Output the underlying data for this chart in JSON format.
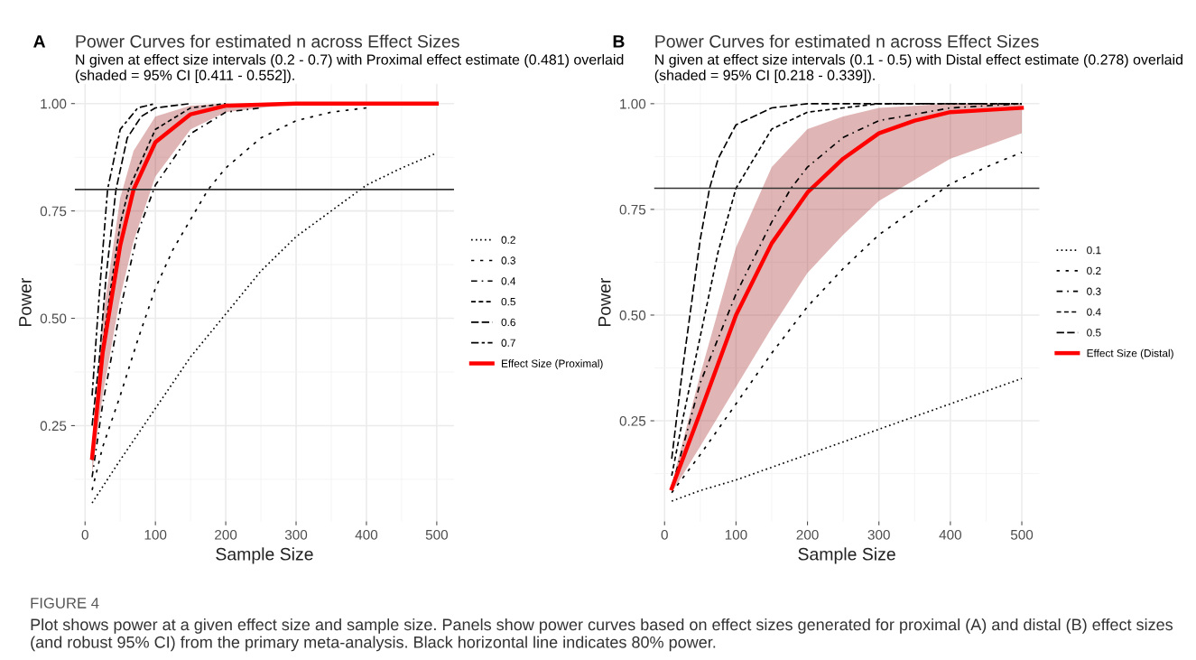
{
  "chart_data": [
    {
      "type": "line",
      "title": "Power Curves for estimated n across Effect Sizes",
      "subtitle": "N given at effect size intervals (0.2 - 0.7) with Proximal effect estimate (0.481) overlaid (shaded = 95% CI [0.411 - 0.552]).",
      "xlabel": "Sample Size",
      "ylabel": "Power",
      "annotations": [
        "A"
      ],
      "xlim": [
        -14.5,
        524.5
      ],
      "ylim": [
        0.027,
        1.046
      ],
      "xticks": [
        0,
        100,
        200,
        300,
        400,
        500
      ],
      "yticks": [
        {
          "value": 0.25,
          "label": "0.25"
        },
        {
          "value": 0.5,
          "label": "0.50"
        },
        {
          "value": 0.75,
          "label": "0.75"
        },
        {
          "value": 1.0,
          "label": "1.00"
        }
      ],
      "grid": true,
      "legend": "right",
      "marker": "none",
      "ref_lines": [
        {
          "axis": "y",
          "value": 0.8,
          "color": "#333333",
          "line_style": "solid"
        }
      ],
      "series": [
        {
          "name": "0.2",
          "color": "#000000",
          "line_style": "dotted",
          "x": [
            10,
            50,
            100,
            150,
            200,
            250,
            300,
            350,
            400,
            450,
            500
          ],
          "values": [
            0.07,
            0.17,
            0.29,
            0.41,
            0.51,
            0.61,
            0.69,
            0.75,
            0.81,
            0.85,
            0.885
          ]
        },
        {
          "name": "0.3",
          "color": "#000000",
          "line_style": "dashed",
          "x": [
            10,
            25,
            50,
            75,
            100,
            125,
            150,
            175,
            200,
            250,
            300,
            350,
            400
          ],
          "values": [
            0.1,
            0.2,
            0.32,
            0.45,
            0.57,
            0.66,
            0.73,
            0.8,
            0.85,
            0.92,
            0.96,
            0.98,
            0.99
          ]
        },
        {
          "name": "0.4",
          "color": "#000000",
          "line_style": "dashed",
          "x": [
            10,
            25,
            50,
            75,
            100,
            150,
            200,
            250
          ],
          "values": [
            0.13,
            0.3,
            0.52,
            0.7,
            0.81,
            0.93,
            0.98,
            0.99
          ]
        },
        {
          "name": "0.5",
          "color": "#000000",
          "line_style": "dashed",
          "x": [
            10,
            25,
            50,
            62,
            100,
            150,
            200
          ],
          "values": [
            0.17,
            0.44,
            0.72,
            0.8,
            0.94,
            0.99,
            1.0
          ]
        },
        {
          "name": "0.6",
          "color": "#000000",
          "line_style": "dashed",
          "x": [
            10,
            20,
            30,
            44,
            60,
            80,
            100,
            150
          ],
          "values": [
            0.25,
            0.4,
            0.6,
            0.8,
            0.92,
            0.97,
            0.99,
            1.0
          ]
        },
        {
          "name": "0.7",
          "color": "#000000",
          "line_style": "dashed",
          "x": [
            10,
            20,
            32,
            50,
            75,
            100
          ],
          "values": [
            0.32,
            0.55,
            0.8,
            0.94,
            0.99,
            1.0
          ]
        },
        {
          "name": "Effect Size (Proximal)",
          "color": "#ff0000",
          "line_style": "solid",
          "x": [
            10,
            25,
            50,
            69,
            100,
            150,
            200,
            300,
            500
          ],
          "values": [
            0.175,
            0.42,
            0.67,
            0.8,
            0.91,
            0.975,
            0.995,
            1.0,
            1.0
          ],
          "lower": [
            0.14,
            0.32,
            0.55,
            0.68,
            0.83,
            0.94,
            0.98,
            1.0,
            1.0
          ],
          "upper": [
            0.2,
            0.5,
            0.78,
            0.89,
            0.97,
            0.995,
            1.0,
            1.0,
            1.0
          ]
        }
      ]
    },
    {
      "type": "line",
      "title": "Power Curves for estimated n across Effect Sizes",
      "subtitle": "N given at effect size intervals (0.1 - 0.5) with Distal effect estimate (0.278) overlaid (shaded = 95% CI [0.218 - 0.339]).",
      "xlabel": "Sample Size",
      "ylabel": "Power",
      "annotations": [
        "B",
        "FIGURE 4",
        "Plot shows power at a given effect size and sample size. Panels show power curves based on effect sizes generated for proximal (A) and distal (B) effect sizes (and robust 95% CI) from the primary meta-analysis. Black horizontal line indicates 80% power."
      ],
      "xlim": [
        -14.5,
        524.5
      ],
      "ylim": [
        0.012,
        1.047
      ],
      "xticks": [
        0,
        100,
        200,
        300,
        400,
        500
      ],
      "yticks": [
        {
          "value": 0.25,
          "label": "0.25"
        },
        {
          "value": 0.5,
          "label": "0.50"
        },
        {
          "value": 0.75,
          "label": "0.75"
        },
        {
          "value": 1.0,
          "label": "1.00"
        }
      ],
      "grid": true,
      "legend": "right",
      "marker": "none",
      "ref_lines": [
        {
          "axis": "y",
          "value": 0.8,
          "color": "#333333",
          "line_style": "solid"
        }
      ],
      "series": [
        {
          "name": "0.1",
          "color": "#000000",
          "line_style": "dotted",
          "x": [
            10,
            50,
            100,
            150,
            200,
            250,
            300,
            350,
            400,
            450,
            500
          ],
          "values": [
            0.06,
            0.085,
            0.11,
            0.14,
            0.17,
            0.2,
            0.23,
            0.26,
            0.29,
            0.32,
            0.35
          ]
        },
        {
          "name": "0.2",
          "color": "#000000",
          "line_style": "dashed",
          "x": [
            10,
            50,
            100,
            150,
            200,
            250,
            300,
            350,
            400,
            450,
            500
          ],
          "values": [
            0.08,
            0.17,
            0.29,
            0.41,
            0.52,
            0.61,
            0.69,
            0.75,
            0.81,
            0.85,
            0.885
          ]
        },
        {
          "name": "0.3",
          "color": "#000000",
          "line_style": "dashed",
          "x": [
            10,
            50,
            100,
            150,
            177,
            200,
            250,
            300,
            400,
            500
          ],
          "values": [
            0.09,
            0.34,
            0.55,
            0.72,
            0.8,
            0.85,
            0.92,
            0.96,
            0.99,
            1.0
          ]
        },
        {
          "name": "0.4",
          "color": "#000000",
          "line_style": "dashed",
          "x": [
            10,
            25,
            50,
            75,
            100,
            150,
            200,
            250,
            300,
            500
          ],
          "values": [
            0.12,
            0.25,
            0.45,
            0.65,
            0.8,
            0.94,
            0.98,
            0.99,
            1.0,
            1.0
          ]
        },
        {
          "name": "0.5",
          "color": "#000000",
          "line_style": "dashed",
          "x": [
            10,
            25,
            50,
            63,
            75,
            100,
            150,
            200,
            500
          ],
          "values": [
            0.16,
            0.37,
            0.68,
            0.8,
            0.87,
            0.95,
            0.99,
            1.0,
            1.0
          ]
        },
        {
          "name": "Effect Size (Distal)",
          "color": "#ff0000",
          "line_style": "solid",
          "x": [
            10,
            50,
            100,
            150,
            200,
            250,
            300,
            350,
            400,
            450,
            500
          ],
          "values": [
            0.09,
            0.27,
            0.5,
            0.67,
            0.79,
            0.87,
            0.93,
            0.96,
            0.98,
            0.985,
            0.99
          ],
          "lower": [
            0.08,
            0.19,
            0.33,
            0.47,
            0.6,
            0.69,
            0.77,
            0.82,
            0.87,
            0.9,
            0.93
          ],
          "upper": [
            0.1,
            0.36,
            0.66,
            0.85,
            0.94,
            0.97,
            0.99,
            0.995,
            1.0,
            1.0,
            1.0
          ]
        }
      ]
    }
  ]
}
